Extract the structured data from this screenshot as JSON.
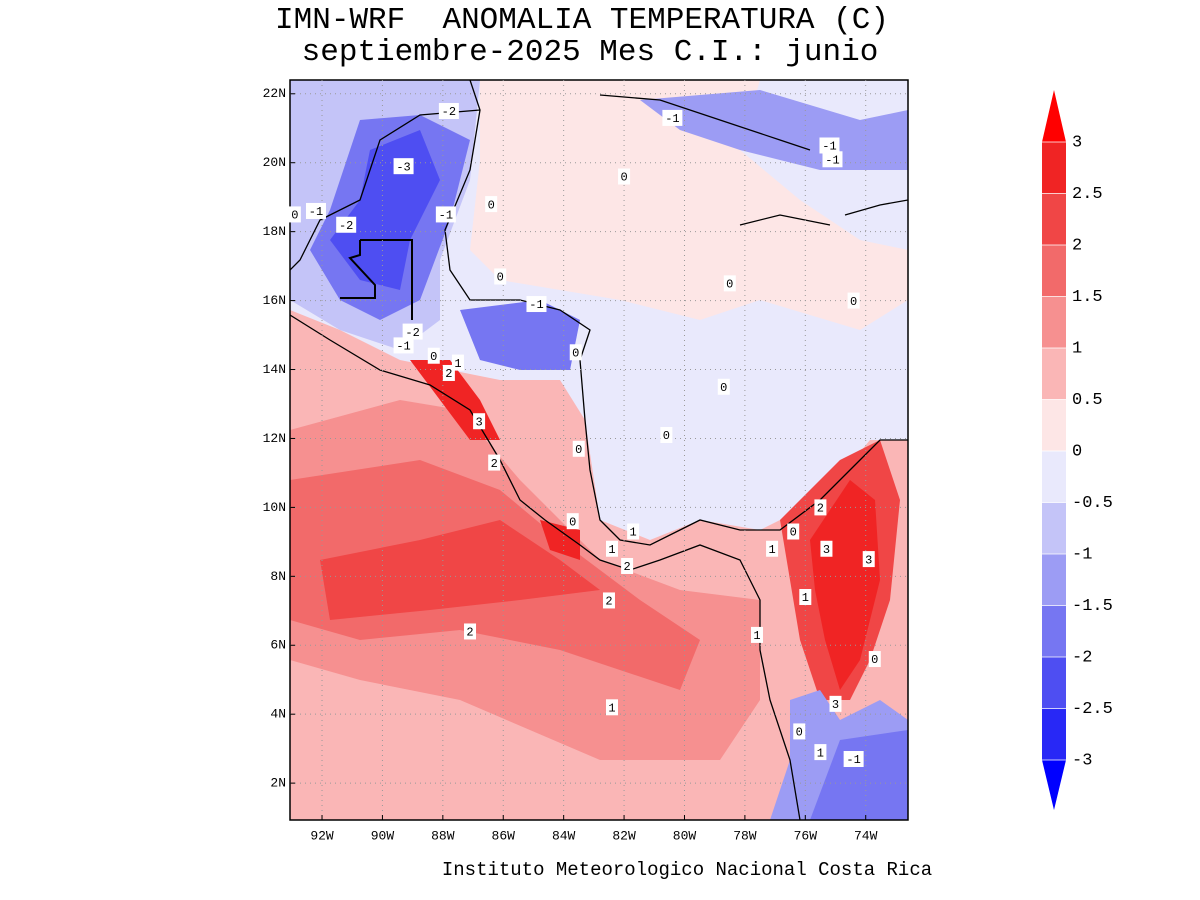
{
  "chart_data": {
    "type": "contour-map",
    "title": "IMN-WRF  ANOMALIA TEMPERATURA (C)",
    "subtitle": "septiembre-2025 Mes C.I.: junio",
    "credit": "Instituto Meteorologico Nacional Costa Rica",
    "xlim": [
      -93.06,
      -72.6
    ],
    "ylim": [
      0.93,
      22.4
    ],
    "xticks": [
      {
        "value": -92,
        "label": "92W"
      },
      {
        "value": -90,
        "label": "90W"
      },
      {
        "value": -88,
        "label": "88W"
      },
      {
        "value": -86,
        "label": "86W"
      },
      {
        "value": -84,
        "label": "84W"
      },
      {
        "value": -82,
        "label": "82W"
      },
      {
        "value": -80,
        "label": "80W"
      },
      {
        "value": -78,
        "label": "78W"
      },
      {
        "value": -76,
        "label": "76W"
      },
      {
        "value": -74,
        "label": "74W"
      }
    ],
    "yticks": [
      {
        "value": 2,
        "label": "2N"
      },
      {
        "value": 4,
        "label": "4N"
      },
      {
        "value": 6,
        "label": "6N"
      },
      {
        "value": 8,
        "label": "8N"
      },
      {
        "value": 10,
        "label": "10N"
      },
      {
        "value": 12,
        "label": "12N"
      },
      {
        "value": 14,
        "label": "14N"
      },
      {
        "value": 16,
        "label": "16N"
      },
      {
        "value": 18,
        "label": "18N"
      },
      {
        "value": 20,
        "label": "20N"
      },
      {
        "value": 22,
        "label": "22N"
      }
    ],
    "grid": true,
    "colorbar": {
      "levels": [
        -3,
        -2.5,
        -2,
        -1.5,
        -1,
        -0.5,
        0,
        0.5,
        1,
        1.5,
        2,
        2.5,
        3
      ],
      "colors": [
        "#0000ff",
        "#2828f6",
        "#4e4ef2",
        "#7676f2",
        "#9c9cf4",
        "#c4c4f8",
        "#e9e9fc",
        "#fde6e6",
        "#fab6b6",
        "#f69090",
        "#f26a6a",
        "#f04646",
        "#f02424",
        "#ff0000"
      ]
    },
    "contour_labels": [
      {
        "value": -2,
        "lon": -87.8,
        "lat": 21.5
      },
      {
        "value": -3,
        "lon": -89.3,
        "lat": 19.9
      },
      {
        "value": -1,
        "lon": -80.4,
        "lat": 21.3
      },
      {
        "value": -1,
        "lon": -75.2,
        "lat": 20.5
      },
      {
        "value": -1,
        "lon": -75.1,
        "lat": 20.1
      },
      {
        "value": 0,
        "lon": -82.0,
        "lat": 19.6
      },
      {
        "value": 0,
        "lon": -86.4,
        "lat": 18.8
      },
      {
        "value": -1,
        "lon": -87.9,
        "lat": 18.5
      },
      {
        "value": 0,
        "lon": -92.9,
        "lat": 18.5
      },
      {
        "value": -1,
        "lon": -92.2,
        "lat": 18.6
      },
      {
        "value": -2,
        "lon": -91.2,
        "lat": 18.2
      },
      {
        "value": 0,
        "lon": -86.1,
        "lat": 16.7
      },
      {
        "value": 0,
        "lon": -78.5,
        "lat": 16.5
      },
      {
        "value": -1,
        "lon": -84.9,
        "lat": 15.9
      },
      {
        "value": 0,
        "lon": -74.4,
        "lat": 16.0
      },
      {
        "value": -2,
        "lon": -89.0,
        "lat": 15.1
      },
      {
        "value": -1,
        "lon": -89.3,
        "lat": 14.7
      },
      {
        "value": 0,
        "lon": -88.3,
        "lat": 14.4
      },
      {
        "value": 1,
        "lon": -87.5,
        "lat": 14.2
      },
      {
        "value": 2,
        "lon": -87.8,
        "lat": 13.9
      },
      {
        "value": 0,
        "lon": -83.6,
        "lat": 14.5
      },
      {
        "value": 0,
        "lon": -78.7,
        "lat": 13.5
      },
      {
        "value": 3,
        "lon": -86.8,
        "lat": 12.5
      },
      {
        "value": 0,
        "lon": -80.6,
        "lat": 12.1
      },
      {
        "value": 0,
        "lon": -83.5,
        "lat": 11.7
      },
      {
        "value": 2,
        "lon": -86.3,
        "lat": 11.3
      },
      {
        "value": 2,
        "lon": -75.5,
        "lat": 10.0
      },
      {
        "value": 0,
        "lon": -76.4,
        "lat": 9.3
      },
      {
        "value": 0,
        "lon": -83.7,
        "lat": 9.6
      },
      {
        "value": 1,
        "lon": -81.7,
        "lat": 9.3
      },
      {
        "value": 1,
        "lon": -77.1,
        "lat": 8.8
      },
      {
        "value": 3,
        "lon": -75.3,
        "lat": 8.8
      },
      {
        "value": 3,
        "lon": -73.9,
        "lat": 8.5
      },
      {
        "value": 1,
        "lon": -82.4,
        "lat": 8.8
      },
      {
        "value": 2,
        "lon": -81.9,
        "lat": 8.3
      },
      {
        "value": 1,
        "lon": -76.0,
        "lat": 7.4
      },
      {
        "value": 2,
        "lon": -82.5,
        "lat": 7.3
      },
      {
        "value": 1,
        "lon": -77.6,
        "lat": 6.3
      },
      {
        "value": 2,
        "lon": -87.1,
        "lat": 6.4
      },
      {
        "value": 0,
        "lon": -73.7,
        "lat": 5.6
      },
      {
        "value": 3,
        "lon": -75.0,
        "lat": 4.3
      },
      {
        "value": 1,
        "lon": -82.4,
        "lat": 4.2
      },
      {
        "value": 0,
        "lon": -76.2,
        "lat": 3.5
      },
      {
        "value": 1,
        "lon": -75.5,
        "lat": 2.9
      },
      {
        "value": -1,
        "lon": -74.4,
        "lat": 2.7
      }
    ]
  }
}
